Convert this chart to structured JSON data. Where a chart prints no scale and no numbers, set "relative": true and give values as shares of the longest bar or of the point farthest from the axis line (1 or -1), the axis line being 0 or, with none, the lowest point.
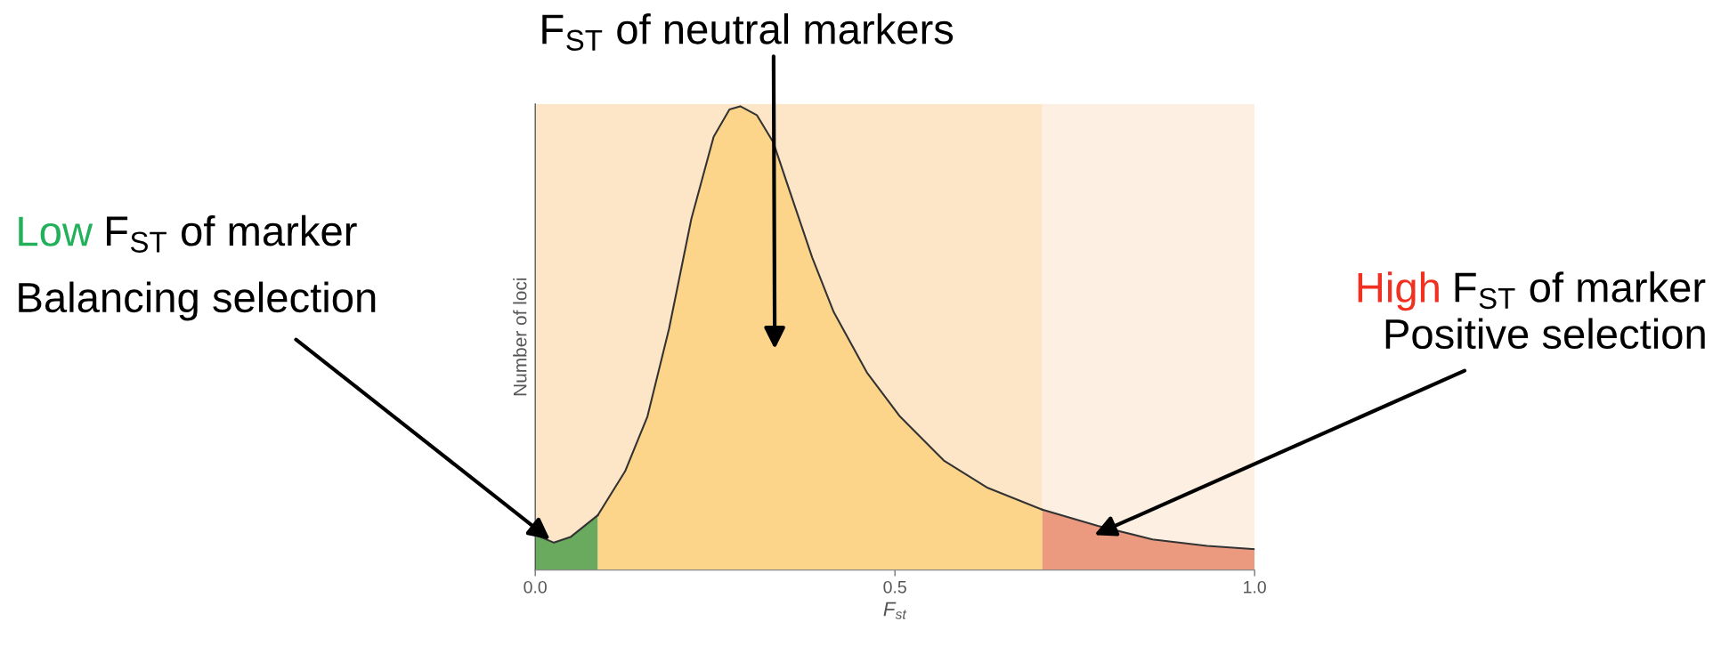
{
  "chart_data": {
    "type": "area",
    "relative": true,
    "xlabel": "F$_{st}$",
    "ylabel": "Number of loci",
    "xlim": [
      0,
      1
    ],
    "xticks": [
      {
        "value": 0,
        "label": "0.0"
      },
      {
        "value": 0.5,
        "label": "0.5"
      },
      {
        "value": 1,
        "label": "1.0"
      }
    ],
    "bands": [
      {
        "axis": "x",
        "from": 0,
        "to": 0.705,
        "color": "#fde6c8"
      },
      {
        "axis": "x",
        "from": 0.705,
        "to": 1,
        "color": "#fdf0e2"
      }
    ],
    "series": [
      {
        "color": "#6aaa5e",
        "x": [
          0,
          0.026,
          0.049,
          0.087
        ],
        "values": [
          0.076,
          0.059,
          0.071,
          0.118
        ]
      },
      {
        "color": "#fdd58a",
        "x": [
          0.087,
          0.125,
          0.156,
          0.186,
          0.217,
          0.248,
          0.27,
          0.285,
          0.308,
          0.331,
          0.354,
          0.385,
          0.415,
          0.461,
          0.507,
          0.568,
          0.629,
          0.705
        ],
        "values": [
          0.118,
          0.213,
          0.331,
          0.52,
          0.757,
          0.934,
          0.993,
          1.0,
          0.981,
          0.922,
          0.816,
          0.674,
          0.556,
          0.426,
          0.331,
          0.236,
          0.177,
          0.13
        ]
      },
      {
        "color": "#eb9a80",
        "x": [
          0.705,
          0.782,
          0.858,
          0.934,
          1.0
        ],
        "values": [
          0.13,
          0.095,
          0.066,
          0.052,
          0.045
        ]
      }
    ],
    "annotations": [
      "F$_{ST}$ of neutral markers",
      "Low",
      "F$_{ST}$ of marker",
      "Balancing selection",
      "High",
      "F$_{ST}$ of marker",
      "Positive selection"
    ]
  }
}
